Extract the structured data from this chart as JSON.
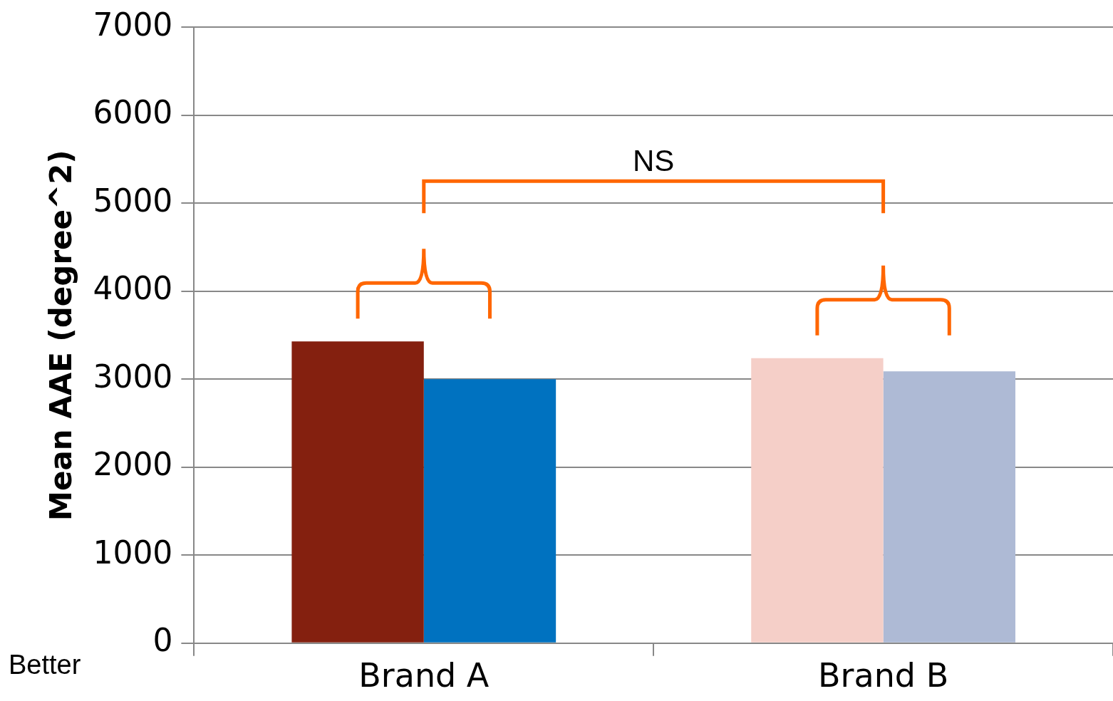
{
  "chart_data": {
    "type": "bar",
    "ylabel": "Mean AAE (degree^2)",
    "categories": [
      "Brand A",
      "Brand B"
    ],
    "series": [
      {
        "colors": [
          "#84200f",
          "#f5cfc8"
        ],
        "values": [
          3430,
          3240
        ]
      },
      {
        "colors": [
          "#0072c0",
          "#aebad5"
        ],
        "values": [
          3000,
          3090
        ]
      }
    ],
    "ylim": [
      0,
      7000
    ],
    "yticks": [
      0,
      1000,
      2000,
      3000,
      4000,
      5000,
      6000,
      7000
    ],
    "grid": "y",
    "legend": false,
    "annotations": [
      "NS",
      "Better"
    ]
  }
}
